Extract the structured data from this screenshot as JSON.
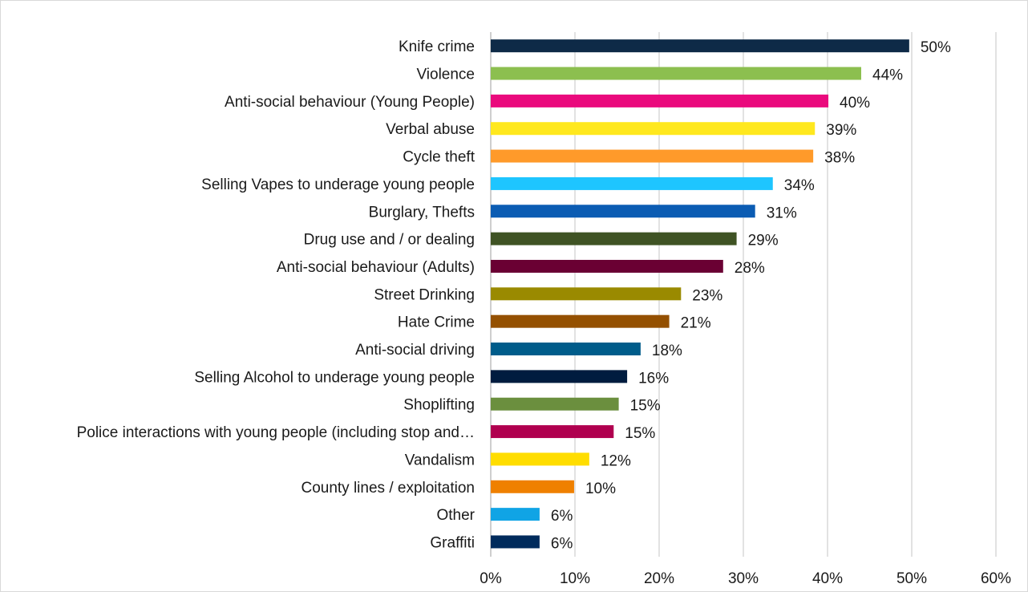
{
  "chart_data": {
    "type": "bar",
    "orientation": "horizontal",
    "title": "",
    "xlabel": "",
    "ylabel": "",
    "xlim": [
      0,
      60
    ],
    "grid": true,
    "legend": "none",
    "categories": [
      "Knife crime",
      "Violence",
      "Anti-social behaviour (Young People)",
      "Verbal abuse",
      "Cycle theft",
      "Selling Vapes to underage young people",
      "Burglary, Thefts",
      "Drug use and / or dealing",
      "Anti-social behaviour (Adults)",
      "Street Drinking",
      "Hate Crime",
      "Anti-social driving",
      "Selling Alcohol to underage young people",
      "Shoplifting",
      "Police interactions with young people (including stop and…",
      "Vandalism",
      "County lines / exploitation",
      "Other",
      "Graffiti"
    ],
    "values": [
      49.7,
      44,
      40.1,
      38.5,
      38.3,
      33.5,
      31.4,
      29.2,
      27.6,
      22.6,
      21.2,
      17.8,
      16.2,
      15.2,
      14.6,
      11.7,
      9.9,
      5.8,
      5.8
    ],
    "data_labels": [
      "50%",
      "44%",
      "40%",
      "39%",
      "38%",
      "34%",
      "31%",
      "29%",
      "28%",
      "23%",
      "21%",
      "18%",
      "16%",
      "15%",
      "15%",
      "12%",
      "10%",
      "6%",
      "6%"
    ],
    "bar_colors": [
      "#0e2a47",
      "#8cbf4f",
      "#ea0a7d",
      "#ffe81e",
      "#ff9a2a",
      "#1ec5ff",
      "#0b5cb3",
      "#3f5324",
      "#6a0033",
      "#9a8a00",
      "#945000",
      "#005c8a",
      "#001c3f",
      "#6b8f3e",
      "#b0004f",
      "#ffdd00",
      "#ef8000",
      "#10a4e5",
      "#002b5c"
    ],
    "x_ticks": [
      0,
      10,
      20,
      30,
      40,
      50,
      60
    ],
    "x_tick_labels": [
      "0%",
      "10%",
      "20%",
      "30%",
      "40%",
      "50%",
      "60%"
    ]
  }
}
